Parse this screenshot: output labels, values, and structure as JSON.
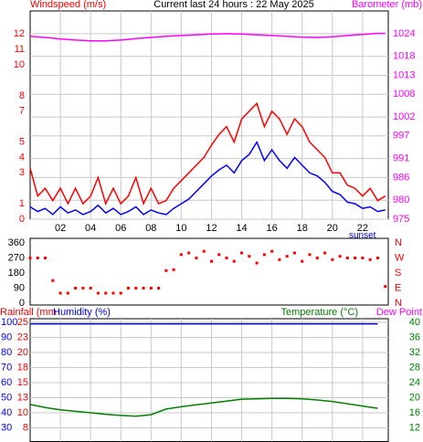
{
  "chart_data": [
    {
      "type": "line",
      "title": "Current last 24 hours : 22 May 2025",
      "y_label": "Windspeed (m/s)",
      "y_color": "#ff0000",
      "y2_label": "Barometer (mb)",
      "y2_color": "#ff00ff",
      "x": [
        0,
        0.5,
        1,
        1.5,
        2,
        2.5,
        3,
        3.5,
        4,
        4.5,
        5,
        5.5,
        6,
        6.5,
        7,
        7.5,
        8,
        8.5,
        9,
        9.5,
        10,
        10.5,
        11,
        11.5,
        12,
        12.5,
        13,
        13.5,
        14,
        14.5,
        15,
        15.5,
        16,
        16.5,
        17,
        17.5,
        18,
        18.5,
        19,
        19.5,
        20,
        20.5,
        21,
        21.5,
        22,
        22.5,
        23,
        23.5
      ],
      "xlim": [
        0,
        23.7
      ],
      "xticks": [
        {
          "value": 2,
          "label": "02"
        },
        {
          "value": 4,
          "label": "04"
        },
        {
          "value": 6,
          "label": "06"
        },
        {
          "value": 8,
          "label": "08"
        },
        10,
        12,
        14,
        16,
        18,
        20,
        22
      ],
      "ylim": [
        0,
        13.5
      ],
      "yticks": [
        0,
        1,
        3,
        4,
        5,
        7,
        8,
        10,
        11,
        12
      ],
      "y2lim": [
        975,
        1030
      ],
      "y2ticks": [
        975,
        980,
        986,
        991,
        997,
        1002,
        1008,
        1013,
        1018,
        1024
      ],
      "grid": true,
      "annotation": {
        "text": "sunset",
        "x": 21.1,
        "color": "#0000ff"
      },
      "series": [
        {
          "color": "#ff0000",
          "values": [
            3.3,
            1.5,
            2,
            1.2,
            2,
            1,
            2,
            1,
            1.5,
            2.7,
            1,
            2,
            1,
            1.5,
            2.7,
            1,
            2,
            1,
            1.2,
            2,
            2.5,
            3,
            3.5,
            4,
            4.8,
            5.5,
            6,
            5,
            6.5,
            7,
            7.5,
            6,
            7,
            6.5,
            5.5,
            6.5,
            6,
            5,
            4.5,
            4,
            3,
            3,
            2.2,
            2,
            1.5,
            2,
            1.2,
            1.5
          ]
        },
        {
          "color": "#0000ff",
          "values": [
            0.8,
            0.5,
            0.7,
            0.3,
            0.8,
            0.4,
            0.6,
            0.3,
            0.5,
            0.9,
            0.4,
            0.7,
            0.3,
            0.5,
            0.8,
            0.3,
            0.6,
            0.4,
            0.3,
            0.7,
            1,
            1.3,
            1.8,
            2.3,
            2.8,
            3.2,
            3.5,
            3,
            3.8,
            4.2,
            5,
            3.8,
            4.5,
            3.8,
            3.3,
            4,
            3.5,
            3,
            2.8,
            2.4,
            1.8,
            1.6,
            1.1,
            1,
            0.7,
            0.8,
            0.5,
            0.6
          ]
        },
        {
          "color": "#ff00ff",
          "axis": "y2",
          "values": [
            1023.3,
            1023.15,
            1023.0,
            1022.8,
            1022.6,
            1022.45,
            1022.3,
            1022.2,
            1022.1,
            1022.1,
            1022.1,
            1022.2,
            1022.3,
            1022.5,
            1022.7,
            1022.85,
            1023.0,
            1023.15,
            1023.3,
            1023.4,
            1023.5,
            1023.6,
            1023.7,
            1023.8,
            1023.9,
            1023.95,
            1024.0,
            1023.95,
            1023.9,
            1023.8,
            1023.7,
            1023.6,
            1023.5,
            1023.4,
            1023.3,
            1023.2,
            1023.1,
            1023.05,
            1023.0,
            1023.1,
            1023.2,
            1023.35,
            1023.5,
            1023.65,
            1023.8,
            1023.95,
            1024.1,
            1024.1
          ]
        }
      ]
    },
    {
      "type": "scatter",
      "y_color": "#000000",
      "y2_color": "#ff0000",
      "x": [
        0,
        0.5,
        1,
        1.5,
        2,
        2.5,
        3,
        3.5,
        4,
        4.5,
        5,
        5.5,
        6,
        6.5,
        7,
        7.5,
        8,
        8.5,
        9,
        9.5,
        10,
        10.5,
        11,
        11.5,
        12,
        12.5,
        13,
        13.5,
        14,
        14.5,
        15,
        15.5,
        16,
        16.5,
        17,
        17.5,
        18,
        18.5,
        19,
        19.5,
        20,
        20.5,
        21,
        21.5,
        22,
        22.5,
        23,
        23.5
      ],
      "xlim": [
        0,
        23.7
      ],
      "ylim": [
        0,
        360
      ],
      "yticks": [
        0,
        90,
        180,
        270,
        360
      ],
      "y2lim": [
        0,
        360
      ],
      "y2ticks": [
        {
          "value": 360,
          "label": "N"
        },
        {
          "value": 270,
          "label": "W"
        },
        {
          "value": 180,
          "label": "S"
        },
        {
          "value": 90,
          "label": "E"
        },
        {
          "value": 0,
          "label": "N"
        }
      ],
      "grid": false,
      "series": [
        {
          "color": "#ff0000",
          "values": [
            270,
            270,
            270,
            135,
            60,
            60,
            90,
            90,
            90,
            60,
            60,
            60,
            60,
            90,
            90,
            90,
            90,
            90,
            195,
            200,
            290,
            300,
            270,
            310,
            250,
            290,
            270,
            250,
            300,
            280,
            240,
            290,
            310,
            260,
            280,
            300,
            250,
            290,
            270,
            300,
            260,
            280,
            270,
            270,
            270,
            260,
            270,
            100
          ]
        }
      ]
    },
    {
      "type": "line",
      "y_label": "Humidity (%)",
      "y_color": "#0000ff",
      "y3_label": "Rainfall (mm",
      "y3_color": "#ff0000",
      "y2_label": "Temperature (°C)",
      "y2_color": "#008000",
      "dew_label": "Dew Point",
      "dew_color": "#ff00ff",
      "x": [
        0,
        1,
        2,
        3,
        4,
        5,
        6,
        7,
        8,
        9,
        10,
        11,
        12,
        13,
        14,
        15,
        16,
        17,
        18,
        19,
        20,
        21,
        22,
        23
      ],
      "xlim": [
        0,
        23.7
      ],
      "xticks": [
        2,
        4,
        6,
        8,
        10,
        12,
        14,
        16,
        18,
        20,
        22
      ],
      "xtick_labels": false,
      "ylim": [
        20,
        100
      ],
      "yticks": [
        100,
        90,
        80,
        70,
        60,
        50,
        40,
        30
      ],
      "y3lim": [
        5,
        25
      ],
      "y3ticks": [
        25,
        {
          "value": 22.5,
          "label": "23"
        },
        20,
        {
          "value": 17.5,
          "label": "18"
        },
        15,
        {
          "value": 12.5,
          "label": "13"
        },
        10,
        {
          "value": 7.5,
          "label": "8"
        }
      ],
      "y2lim": [
        8,
        40
      ],
      "y2ticks": [
        40,
        36,
        32,
        28,
        24,
        20,
        16,
        12
      ],
      "grid": true,
      "series": [
        {
          "color": "#0000cc",
          "values": [
            99,
            99,
            99,
            99,
            99,
            99,
            99,
            99,
            99,
            99,
            99,
            99,
            99,
            99,
            99,
            99,
            99,
            99,
            99,
            99,
            99,
            99,
            99,
            99
          ]
        },
        {
          "color": "#008000",
          "axis": "y2",
          "values": [
            18.2,
            17.4,
            16.8,
            16.4,
            16.0,
            15.6,
            15.3,
            15.1,
            15.5,
            17.0,
            17.6,
            18.1,
            18.6,
            19.1,
            19.6,
            19.7,
            19.8,
            19.8,
            19.7,
            19.4,
            19.0,
            18.4,
            17.8,
            17.2
          ]
        }
      ]
    }
  ]
}
